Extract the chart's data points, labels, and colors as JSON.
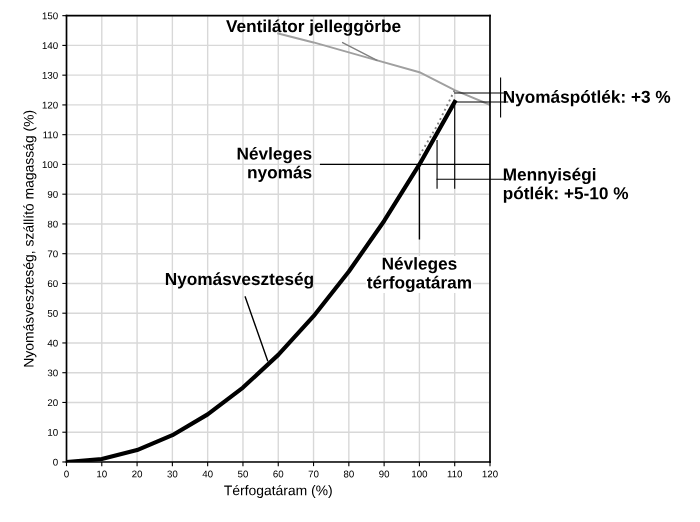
{
  "chart_data": {
    "type": "line",
    "xlabel": "Térfogatáram (%)",
    "ylabel": "Nyomásveszteség, szállító magasság (%)",
    "xlim": [
      0,
      120
    ],
    "ylim": [
      0,
      150
    ],
    "xticks": [
      0,
      10,
      20,
      30,
      40,
      50,
      60,
      70,
      80,
      90,
      100,
      110,
      120
    ],
    "yticks": [
      0,
      10,
      20,
      30,
      40,
      50,
      60,
      70,
      80,
      90,
      100,
      110,
      120,
      130,
      140,
      150
    ],
    "grid": true,
    "series": [
      {
        "color": "#000000",
        "line_style": "solid",
        "x": [
          0,
          10,
          20,
          30,
          40,
          50,
          60,
          70,
          80,
          90,
          100,
          110
        ],
        "values": [
          0,
          1,
          4,
          9,
          16,
          25,
          36,
          49,
          64,
          81,
          100,
          121
        ]
      },
      {
        "color": "#a0a0a0",
        "line_style": "solid",
        "x": [
          60,
          70,
          85,
          100,
          110,
          120
        ],
        "values": [
          144,
          141,
          136,
          131,
          125,
          120
        ]
      },
      {
        "color": "#808080",
        "line_style": "dotted",
        "x": [
          100,
          105,
          110
        ],
        "values": [
          103,
          113,
          125
        ]
      }
    ],
    "ref_lines": [
      {
        "axis": "y",
        "value": 100,
        "label": "Névleges\nnyomás",
        "color": "#000000"
      },
      {
        "axis": "x",
        "value": 100,
        "label": "Névleges\ntérfogatáram",
        "color": "#000000"
      }
    ],
    "annotations": [
      {
        "text": "Ventilátor jelleggörbe",
        "x": 88,
        "y": 135
      },
      {
        "text": "Nyomásveszteség",
        "x": 57,
        "y": 34
      },
      "Nyomáspótlék: +3 %",
      "Mennyiségi\npótlék: +5-10 %"
    ]
  }
}
